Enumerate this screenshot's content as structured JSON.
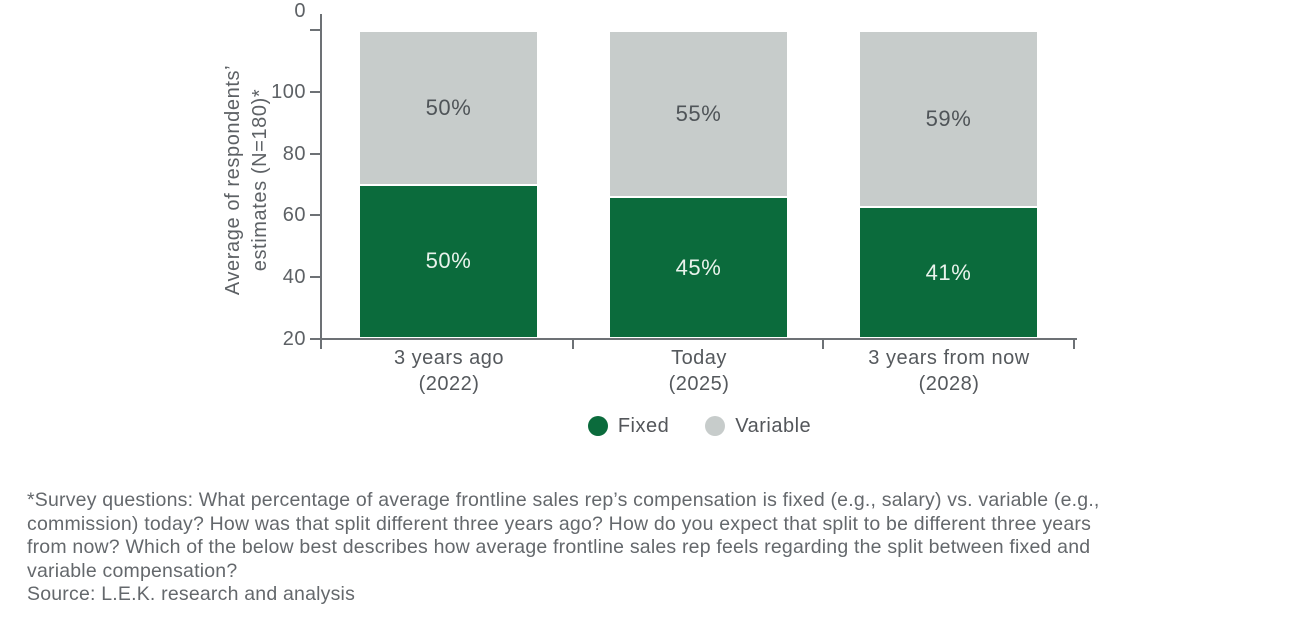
{
  "chart_data": {
    "type": "bar",
    "stacked": true,
    "categories": [
      "3 years ago (2022)",
      "Today (2025)",
      "3 years from now (2028)"
    ],
    "category_lines": [
      [
        "3 years ago",
        "(2022)"
      ],
      [
        "Today",
        "(2025)"
      ],
      [
        "3 years from now",
        "(2028)"
      ]
    ],
    "series": [
      {
        "name": "Fixed",
        "color": "#0b6b3c",
        "values": [
          50,
          45,
          41
        ],
        "data_labels": [
          "50%",
          "45%",
          "41%"
        ],
        "label_color": "#e9f3ec"
      },
      {
        "name": "Variable",
        "color": "#c7cccb",
        "values": [
          50,
          55,
          59
        ],
        "data_labels": [
          "50%",
          "55%",
          "59%"
        ],
        "label_color": "#4f5458"
      }
    ],
    "title": "",
    "xlabel": "",
    "ylabel": "Average of respondents’ estimates (N=180)*",
    "ylabel_lines": [
      "Average of respondents’",
      "estimates (N=180)*"
    ],
    "ylim": [
      0,
      100
    ],
    "yticks": [
      "100",
      "80",
      "60",
      "40",
      "20",
      "0"
    ],
    "grid": false,
    "legend_position": "bottom"
  },
  "legend": {
    "items": [
      {
        "label": "Fixed",
        "color": "#0b6b3c"
      },
      {
        "label": "Variable",
        "color": "#c7cccb"
      }
    ]
  },
  "footnote": {
    "lines": [
      "*Survey questions: What percentage of average frontline sales rep’s compensation is fixed (e.g., salary) vs. variable (e.g.,",
      "commission) today? How was that split different three years ago? How do you expect that split to be different three years",
      "from now? Which of the below best describes how average frontline sales rep feels regarding the split between fixed and",
      "variable compensation?"
    ],
    "source": "Source: L.E.K. research and analysis"
  },
  "colors": {
    "axis": "#6d7175",
    "tick_label": "#5d6165",
    "category_label": "#55595d",
    "footnote": "#64686c",
    "bar_divider": "#ffffff"
  }
}
